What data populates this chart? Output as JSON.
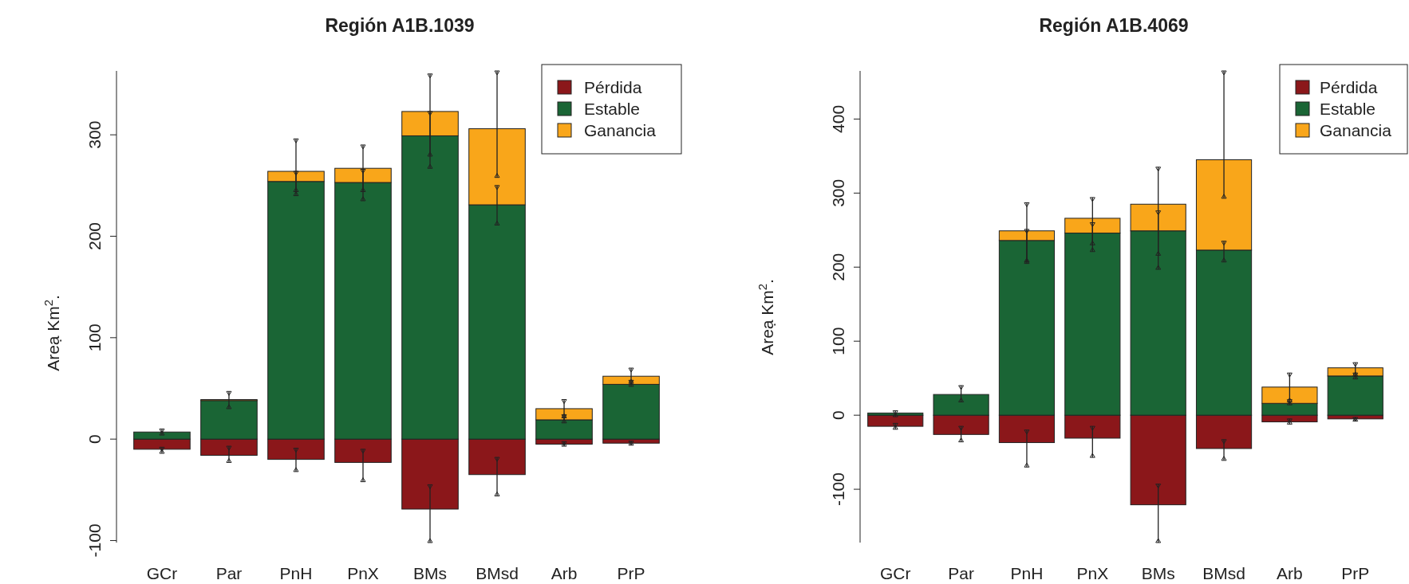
{
  "chart_data": [
    {
      "type": "bar",
      "title": "Región A1B.1039",
      "ylabel": "Areạ Km$^{2}$.",
      "categories": [
        "GCr",
        "Par",
        "PnH",
        "PnX",
        "BMs",
        "BMsd",
        "Arb",
        "PrP"
      ],
      "stacked": true,
      "legend": "top right",
      "ylim": [
        -102,
        363
      ],
      "yticks": [
        -100,
        0,
        100,
        200,
        300
      ],
      "series": [
        {
          "name": "Pérdida",
          "color": "#8b171a",
          "values": [
            -10,
            -16,
            -20,
            -23,
            -69,
            -35,
            -5,
            -4
          ],
          "errors": [
            [
              -14,
              -8
            ],
            [
              -23,
              -7
            ],
            [
              -32,
              -9
            ],
            [
              -42,
              -10
            ],
            [
              -102,
              -45
            ],
            [
              -56,
              -18
            ],
            [
              -7,
              -2.5
            ],
            [
              -6,
              -2
            ]
          ]
        },
        {
          "name": "Estable",
          "color": "#1a6535",
          "values": [
            7,
            38,
            254,
            253,
            299,
            231,
            19,
            54
          ],
          "errors": [
            [
              4,
              10
            ],
            [
              30,
              47
            ],
            [
              240,
              264
            ],
            [
              235,
              266
            ],
            [
              267,
              323
            ],
            [
              211,
              250
            ],
            [
              16,
              24
            ],
            [
              52,
              58
            ]
          ]
        },
        {
          "name": "Ganancia",
          "color": "#f9a61a",
          "values": [
            0,
            1,
            10,
            14,
            24,
            75,
            11,
            8
          ],
          "errors": [
            null,
            null,
            [
              244,
              296
            ],
            [
              244,
              290
            ],
            [
              279,
              360
            ],
            [
              258,
              363
            ],
            [
              21,
              39
            ],
            [
              55,
              70
            ]
          ]
        }
      ]
    },
    {
      "type": "bar",
      "title": "Región A1B.4069",
      "ylabel": "Areạ Km$^{2}$.",
      "categories": [
        "GCr",
        "Par",
        "PnH",
        "PnX",
        "BMs",
        "BMsd",
        "Arb",
        "PrP"
      ],
      "stacked": true,
      "legend": "top right",
      "ylim": [
        -172,
        465
      ],
      "yticks": [
        -100,
        0,
        100,
        200,
        300,
        400
      ],
      "series": [
        {
          "name": "Pérdida",
          "color": "#8b171a",
          "values": [
            -15,
            -26,
            -37,
            -31,
            -121,
            -45,
            -9,
            -5
          ],
          "errors": [
            [
              -19,
              -11
            ],
            [
              -36,
              -15
            ],
            [
              -70,
              -20
            ],
            [
              -57,
              -15
            ],
            [
              -172,
              -93
            ],
            [
              -61,
              -33
            ],
            [
              -12,
              -5
            ],
            [
              -8,
              -3
            ]
          ]
        },
        {
          "name": "Estable",
          "color": "#1a6535",
          "values": [
            3,
            28,
            236,
            246,
            249,
            223,
            16,
            53
          ],
          "errors": [
            [
              -2,
              6
            ],
            [
              18,
              40
            ],
            [
              205,
              251
            ],
            [
              221,
              260
            ],
            [
              197,
              276
            ],
            [
              207,
              235
            ],
            [
              14,
              21
            ],
            [
              49,
              57
            ]
          ]
        },
        {
          "name": "Ganancia",
          "color": "#f9a61a",
          "values": [
            0,
            0,
            13,
            20,
            36,
            122,
            22,
            11
          ],
          "errors": [
            null,
            null,
            [
              207,
              287
            ],
            [
              230,
              294
            ],
            [
              216,
              335
            ],
            [
              293,
              465
            ],
            [
              18,
              57
            ],
            [
              53,
              71
            ]
          ]
        }
      ]
    }
  ]
}
